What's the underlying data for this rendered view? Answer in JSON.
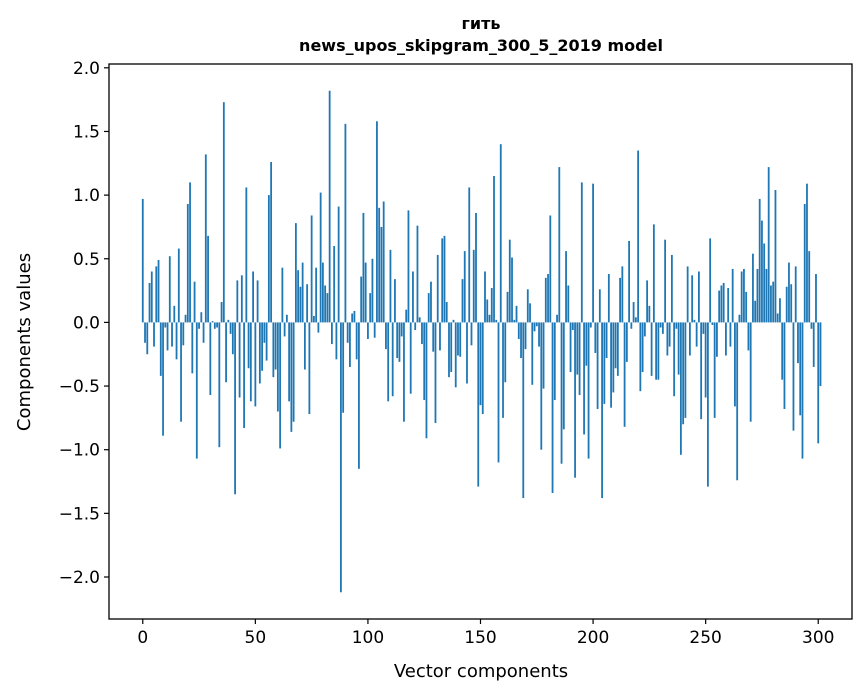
{
  "chart_data": {
    "type": "bar",
    "title_lines": [
      "гить",
      "news_upos_skipgram_300_5_2019 model"
    ],
    "xlabel": "Vector components",
    "ylabel": "Components values",
    "xlim": [
      -15,
      315
    ],
    "ylim": [
      -2.33,
      2.03
    ],
    "xticks": [
      0,
      50,
      100,
      150,
      200,
      250,
      300
    ],
    "xtick_labels": [
      "0",
      "50",
      "100",
      "150",
      "200",
      "250",
      "300"
    ],
    "yticks": [
      2.0,
      1.5,
      1.0,
      0.5,
      0.0,
      -0.5,
      -1.0,
      -1.5,
      -2.0
    ],
    "ytick_labels": [
      "2.0",
      "1.5",
      "1.0",
      "0.5",
      "0.0",
      "−0.5",
      "−1.0",
      "−1.5",
      "−2.0"
    ],
    "bar_color": "#1f77b4",
    "grid": false,
    "values": [
      0.97,
      -0.16,
      -0.25,
      0.31,
      0.4,
      -0.19,
      0.44,
      0.49,
      -0.42,
      -0.89,
      -0.04,
      -0.22,
      0.52,
      -0.19,
      0.13,
      -0.29,
      0.58,
      -0.78,
      -0.18,
      0.06,
      0.93,
      1.1,
      -0.4,
      0.32,
      -1.07,
      -0.05,
      0.08,
      -0.16,
      1.32,
      0.68,
      -0.57,
      0.01,
      -0.05,
      -0.04,
      -0.98,
      0.16,
      1.73,
      -0.47,
      0.02,
      -0.09,
      -0.25,
      -1.35,
      0.33,
      -0.59,
      0.37,
      -0.83,
      1.06,
      -0.36,
      -0.62,
      0.4,
      -0.66,
      0.33,
      -0.48,
      -0.38,
      -0.16,
      -0.3,
      1.0,
      1.26,
      -0.43,
      -0.37,
      -0.7,
      -0.99,
      0.43,
      -0.11,
      0.06,
      -0.62,
      -0.86,
      -0.78,
      0.78,
      0.41,
      0.28,
      0.47,
      -0.37,
      0.3,
      -0.72,
      0.84,
      0.05,
      0.43,
      -0.08,
      1.02,
      0.47,
      0.29,
      0.23,
      1.82,
      -0.17,
      0.6,
      -0.29,
      0.91,
      -2.12,
      -0.71,
      1.56,
      -0.16,
      -0.35,
      0.07,
      0.09,
      -0.29,
      -1.15,
      0.36,
      0.86,
      0.47,
      -0.13,
      0.23,
      0.5,
      -0.12,
      1.58,
      0.9,
      0.75,
      0.95,
      -0.21,
      -0.62,
      0.57,
      -0.58,
      0.34,
      -0.28,
      -0.31,
      -0.11,
      -0.78,
      0.1,
      0.88,
      -0.56,
      0.4,
      -0.06,
      0.76,
      0.04,
      -0.17,
      -0.61,
      -0.91,
      0.23,
      0.32,
      -0.23,
      -0.79,
      0.53,
      -0.22,
      0.66,
      0.68,
      0.16,
      -0.43,
      -0.39,
      0.02,
      -0.51,
      -0.26,
      -0.27,
      0.34,
      0.56,
      -0.48,
      1.06,
      -0.18,
      0.57,
      0.86,
      -1.29,
      -0.65,
      -0.72,
      0.4,
      0.18,
      0.06,
      0.27,
      1.15,
      0.02,
      -1.1,
      1.4,
      -0.75,
      -0.47,
      0.24,
      0.65,
      0.51,
      0.02,
      0.13,
      -0.13,
      -0.28,
      -1.38,
      -0.21,
      0.26,
      0.15,
      -0.49,
      -0.07,
      -0.03,
      -0.19,
      -1.0,
      -0.52,
      0.35,
      0.38,
      0.84,
      -1.34,
      -0.61,
      0.06,
      1.22,
      -1.11,
      -0.84,
      0.56,
      0.29,
      -0.39,
      -0.06,
      -1.22,
      -0.41,
      -0.57,
      1.1,
      -0.88,
      -0.34,
      -1.07,
      -0.04,
      1.09,
      -0.24,
      -0.68,
      0.26,
      -1.38,
      -0.64,
      -0.28,
      0.38,
      -0.67,
      -0.55,
      -0.36,
      -0.42,
      0.35,
      0.44,
      -0.82,
      -0.31,
      0.64,
      -0.05,
      0.16,
      0.04,
      1.35,
      -0.54,
      -0.39,
      -0.11,
      0.33,
      0.13,
      -0.42,
      0.77,
      -0.45,
      -0.45,
      -0.04,
      -0.09,
      0.65,
      -0.26,
      -0.19,
      0.53,
      -0.58,
      -0.05,
      -0.41,
      -1.04,
      -0.8,
      -0.75,
      0.44,
      -0.26,
      0.37,
      0.02,
      -0.19,
      0.4,
      -0.76,
      -0.09,
      -0.59,
      -1.29,
      0.66,
      -0.02,
      -0.75,
      -0.27,
      0.25,
      0.29,
      0.31,
      -0.26,
      0.27,
      -0.19,
      0.42,
      -0.66,
      -1.24,
      0.06,
      0.4,
      0.42,
      0.24,
      -0.22,
      -0.78,
      0.54,
      0.17,
      0.42,
      0.97,
      0.8,
      0.62,
      0.42,
      1.22,
      0.29,
      0.32,
      1.04,
      0.07,
      0.19,
      -0.45,
      -0.68,
      0.28,
      0.47,
      0.3,
      -0.85,
      0.44,
      -0.32,
      -0.73,
      -1.07,
      0.93,
      1.09,
      0.56,
      -0.05,
      -0.35,
      0.38,
      -0.95,
      -0.5
    ]
  }
}
